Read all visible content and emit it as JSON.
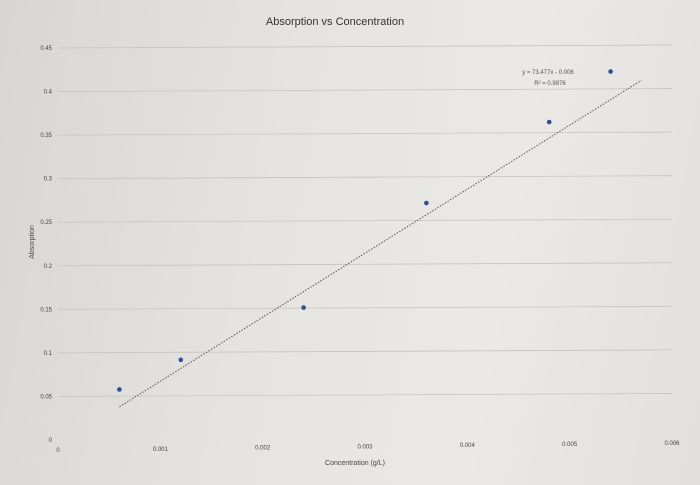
{
  "chart_data": {
    "type": "scatter",
    "title": "Absorption vs Concentration",
    "xlabel": "Concentration (g/L)",
    "ylabel": "Absorption",
    "xlim": [
      0,
      0.006
    ],
    "ylim": [
      0,
      0.45
    ],
    "x_ticks": [
      "0",
      "0.001",
      "0.002",
      "0.003",
      "0.004",
      "0.005",
      "0.006"
    ],
    "y_ticks": [
      "0",
      "0.05",
      "0.1",
      "0.15",
      "0.2",
      "0.25",
      "0.3",
      "0.35",
      "0.4",
      "0.45"
    ],
    "grid": true,
    "series": [
      {
        "x": [
          0.0006,
          0.0012,
          0.0024,
          0.0036,
          0.0048,
          0.0054
        ],
        "y": [
          0.058,
          0.092,
          0.152,
          0.272,
          0.365,
          0.423
        ]
      }
    ],
    "trendline": {
      "type": "linear",
      "slope": 73.477,
      "intercept": -0.006,
      "equation": "y = 73.477x - 0.006",
      "r_squared": "R² = 0.9876",
      "x_range": [
        0.0006,
        0.0054
      ]
    },
    "colors": {
      "point": "#2e4f8f",
      "trendline": "#555555",
      "grid": "#c6c4bf"
    }
  }
}
